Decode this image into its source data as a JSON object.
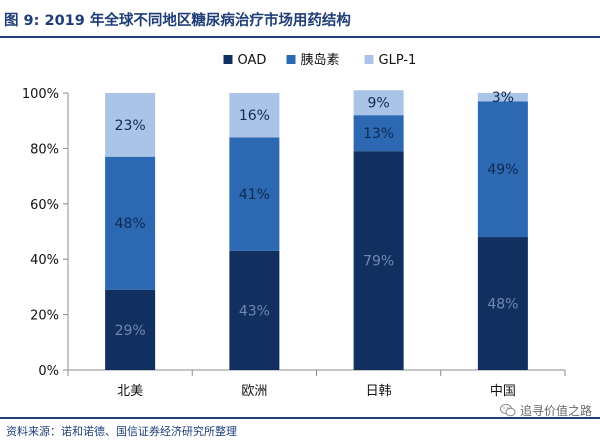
{
  "header": {
    "figure_label": "图 9:",
    "title": "2019 年全球不同地区糖尿病治疗市场用药结构"
  },
  "footer": {
    "source": "资料来源：诺和诺德、国信证券经济研究所整理"
  },
  "watermark": {
    "text": "追寻价值之路",
    "icon": "wechat-icon"
  },
  "chart_data": {
    "type": "bar",
    "stacked": true,
    "categories": [
      "北美",
      "欧洲",
      "日韩",
      "中国"
    ],
    "series": [
      {
        "name": "OAD",
        "values": [
          29,
          43,
          79,
          48
        ],
        "labels": [
          "29%",
          "43%",
          "79%",
          "48%"
        ],
        "color": "#11305f",
        "label_color": "#6f87b1"
      },
      {
        "name": "胰岛素",
        "values": [
          48,
          41,
          13,
          49
        ],
        "labels": [
          "48%",
          "41%",
          "13%",
          "49%"
        ],
        "color": "#2d68b2",
        "label_color": "#0f2a52"
      },
      {
        "name": "GLP-1",
        "values": [
          23,
          16,
          9,
          3
        ],
        "labels": [
          "23%",
          "16%",
          "9%",
          "3%"
        ],
        "color": "#a9c4e7",
        "label_color": "#0f2a52"
      }
    ],
    "ylim": [
      0,
      100
    ],
    "yticks": [
      0,
      20,
      40,
      60,
      80,
      100
    ],
    "ytick_labels": [
      "0%",
      "20%",
      "40%",
      "60%",
      "80%",
      "100%"
    ],
    "legend_position": "top",
    "grid": false
  }
}
